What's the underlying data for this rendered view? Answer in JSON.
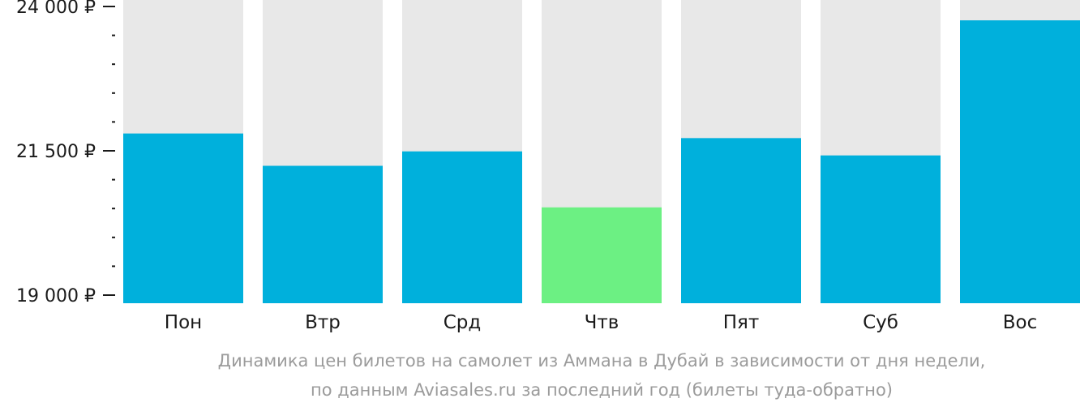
{
  "chart_data": {
    "type": "bar",
    "categories": [
      "Пон",
      "Втр",
      "Срд",
      "Чтв",
      "Пят",
      "Суб",
      "Вос"
    ],
    "values": [
      21800,
      21240,
      21490,
      20520,
      21720,
      21420,
      23760
    ],
    "ylim": [
      19000,
      24000
    ],
    "y_ticks": [
      {
        "value": 24000,
        "label": "24 000 ₽"
      },
      {
        "value": 21500,
        "label": "21 500 ₽"
      },
      {
        "value": 19000,
        "label": "19 000 ₽"
      }
    ],
    "minor_tick_step": 500,
    "highlight_index": 3,
    "grid": false,
    "legend": "none",
    "colors": {
      "bar": "#00b0dc",
      "highlight": "#6cf083",
      "background_bar": "#e8e8e8",
      "axis": "#1a1a1a",
      "caption": "#9b9b9b"
    },
    "caption": [
      "Динамика цен билетов на самолет из Аммана в Дубай в зависимости от дня недели,",
      "по данным Aviasales.ru за последний год (билеты туда-обратно)"
    ]
  }
}
